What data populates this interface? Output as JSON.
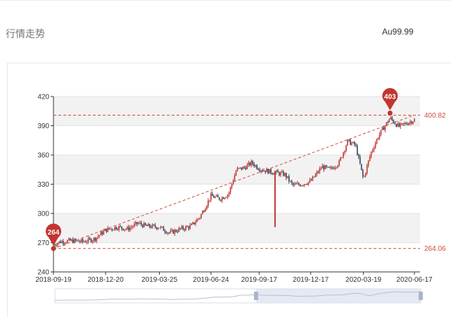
{
  "header": {
    "title": "行情走势",
    "symbol": "Au99.99"
  },
  "chart_data": {
    "type": "candlestick",
    "x_ticks": [
      "2018-09-19",
      "2018-12-20",
      "2019-03-25",
      "2019-06-24",
      "2019-09-17",
      "2019-12-17",
      "2020-03-19",
      "2020-06-17"
    ],
    "y_ticks": [
      "240",
      "270",
      "300",
      "330",
      "360",
      "390",
      "420"
    ],
    "ylim": [
      240,
      420
    ],
    "grid": true,
    "up_color": "#c23531",
    "down_color": "#314656",
    "max_point": {
      "label": "403",
      "date": "2020-05-05",
      "value": 403
    },
    "min_point": {
      "label": "264",
      "date": "2018-09-19",
      "value": 264
    },
    "ref_line_high": {
      "label": "400.82",
      "value": 400.82
    },
    "ref_line_low": {
      "label": "264.06",
      "value": 264.06
    },
    "trend_line": {
      "from": [
        "2018-09-19",
        264
      ],
      "to": [
        "2020-06-17",
        401
      ]
    },
    "series_points": [
      [
        "2018-09-19",
        268
      ],
      [
        "2018-10-01",
        271
      ],
      [
        "2018-10-20",
        272
      ],
      [
        "2018-11-10",
        271
      ],
      [
        "2018-12-01",
        274
      ],
      [
        "2018-12-20",
        283
      ],
      [
        "2019-01-10",
        286
      ],
      [
        "2019-01-28",
        284
      ],
      [
        "2019-02-15",
        290
      ],
      [
        "2019-03-01",
        287
      ],
      [
        "2019-03-25",
        286
      ],
      [
        "2019-04-12",
        280
      ],
      [
        "2019-05-01",
        284
      ],
      [
        "2019-05-20",
        287
      ],
      [
        "2019-06-05",
        297
      ],
      [
        "2019-06-24",
        318
      ],
      [
        "2019-07-10",
        315
      ],
      [
        "2019-07-25",
        320
      ],
      [
        "2019-08-08",
        345
      ],
      [
        "2019-08-22",
        347
      ],
      [
        "2019-09-04",
        352
      ],
      [
        "2019-09-17",
        346
      ],
      [
        "2019-10-05",
        343
      ],
      [
        "2019-10-15",
        342
      ],
      [
        "2019-11-01",
        340
      ],
      [
        "2019-11-15",
        329
      ],
      [
        "2019-12-01",
        330
      ],
      [
        "2019-12-17",
        333
      ],
      [
        "2020-01-06",
        348
      ],
      [
        "2020-01-20",
        345
      ],
      [
        "2020-02-05",
        352
      ],
      [
        "2020-02-20",
        374
      ],
      [
        "2020-03-05",
        370
      ],
      [
        "2020-03-19",
        335
      ],
      [
        "2020-04-01",
        362
      ],
      [
        "2020-04-15",
        380
      ],
      [
        "2020-05-05",
        398
      ],
      [
        "2020-05-20",
        389
      ],
      [
        "2020-06-01",
        392
      ],
      [
        "2020-06-17",
        396
      ]
    ],
    "spike": {
      "date": "2019-10-15",
      "high": 343,
      "low": 286
    },
    "zoom_slider": {
      "start": 0.0,
      "end": 1.0,
      "selected_from": 0.55,
      "selected_to": 1.0
    }
  },
  "colors": {
    "grid_band": "#f2f2f2",
    "axis": "#333333",
    "ref_line": "#d14a3c",
    "pin": "#c23531",
    "slider_fill": "#dfe4ee"
  }
}
